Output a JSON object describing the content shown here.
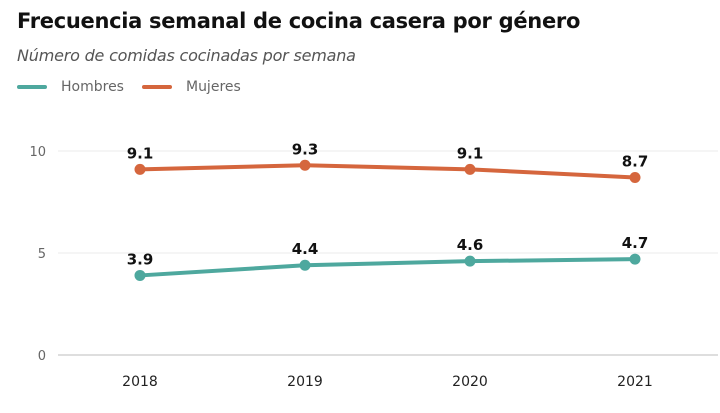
{
  "chart_data": {
    "type": "line",
    "title": "Frecuencia semanal de cocina casera por género",
    "subtitle": "Número de comidas cocinadas por semana",
    "xlabel": "",
    "ylabel": "",
    "categories": [
      "2018",
      "2019",
      "2020",
      "2021"
    ],
    "series": [
      {
        "name": "Hombres",
        "color": "#4ea89e",
        "values": [
          3.9,
          4.4,
          4.6,
          4.7
        ],
        "labels": [
          "3.9",
          "4.4",
          "4.6",
          "4.7"
        ]
      },
      {
        "name": "Mujeres",
        "color": "#d5663d",
        "values": [
          9.1,
          9.3,
          9.1,
          8.7
        ],
        "labels": [
          "9.1",
          "9.3",
          "9.1",
          "8.7"
        ]
      }
    ],
    "ylim": [
      0,
      10
    ],
    "yticks": [
      0,
      5,
      10
    ],
    "ytick_labels": [
      "0",
      "5",
      "10"
    ],
    "grid": true,
    "legend_position": "top-left"
  }
}
